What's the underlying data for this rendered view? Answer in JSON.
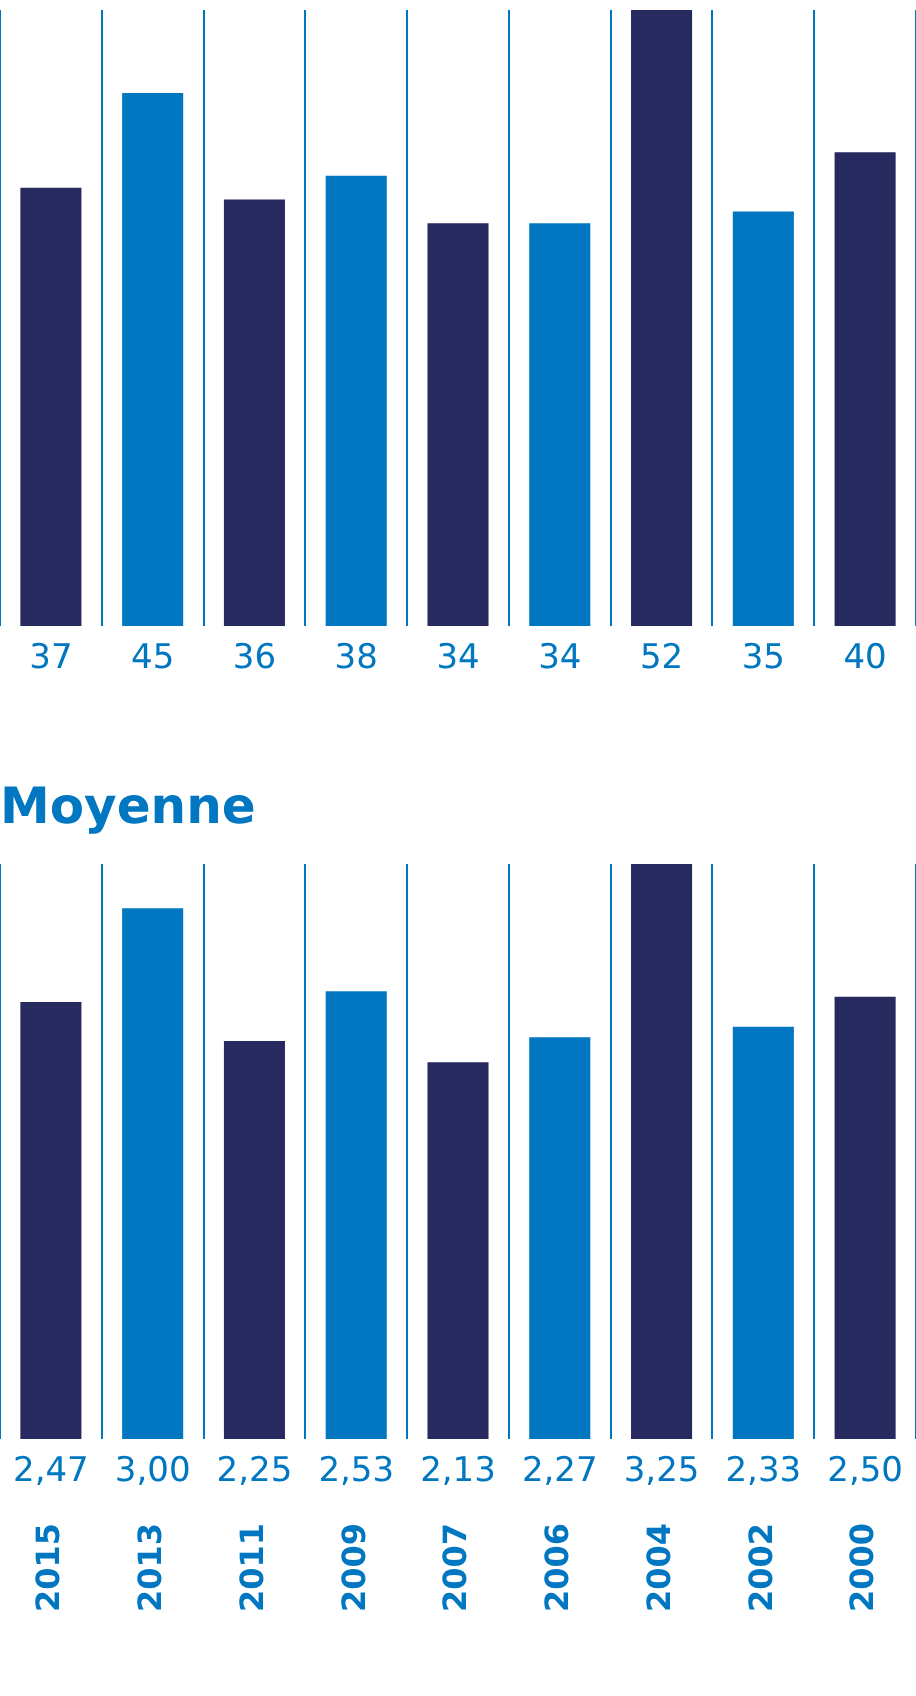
{
  "chart_data": [
    {
      "type": "bar",
      "categories": [
        "2015",
        "2013",
        "2011",
        "2009",
        "2007",
        "2006",
        "2004",
        "2002",
        "2000"
      ],
      "values": [
        37,
        45,
        36,
        38,
        34,
        34,
        52,
        35,
        40
      ],
      "colors": [
        "#262a5e",
        "#0077c0",
        "#262a5e",
        "#0077c0",
        "#262a5e",
        "#0077c0",
        "#262a5e",
        "#0077c0",
        "#262a5e"
      ],
      "data_labels": true,
      "grid": "x",
      "tick_labels": false,
      "legend": false
    },
    {
      "type": "bar",
      "title": "Moyenne",
      "categories": [
        "2015",
        "2013",
        "2011",
        "2009",
        "2007",
        "2006",
        "2004",
        "2002",
        "2000"
      ],
      "values": [
        2.47,
        3.0,
        2.25,
        2.53,
        2.13,
        2.27,
        3.25,
        2.33,
        2.5
      ],
      "value_labels": [
        "2,47",
        "3,00",
        "2,25",
        "2,53",
        "2,13",
        "2,27",
        "3,25",
        "2,33",
        "2,50"
      ],
      "colors": [
        "#262a5e",
        "#0077c0",
        "#262a5e",
        "#0077c0",
        "#262a5e",
        "#0077c0",
        "#262a5e",
        "#0077c0",
        "#262a5e"
      ],
      "grid": "x",
      "tick_labels": "x",
      "legend": false
    }
  ]
}
